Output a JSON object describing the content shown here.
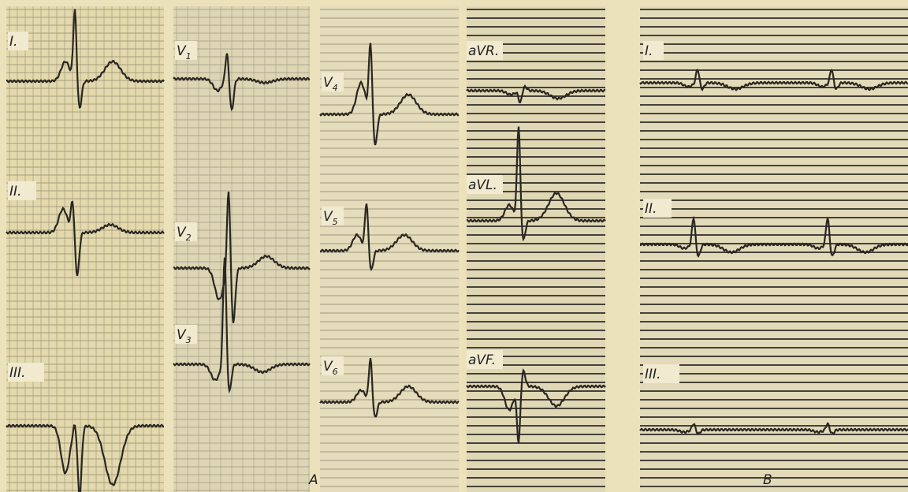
{
  "panels": [
    {
      "leads": [
        {
          "text": "I."
        },
        {
          "text": "II."
        },
        {
          "text": "III."
        }
      ]
    },
    {
      "leads": [
        {
          "text": "V",
          "sub": "1"
        },
        {
          "text": "V",
          "sub": "2"
        },
        {
          "text": "V",
          "sub": "3"
        }
      ]
    },
    {
      "leads": [
        {
          "text": "V",
          "sub": "4"
        },
        {
          "text": "V",
          "sub": "5"
        },
        {
          "text": "V",
          "sub": "6"
        }
      ]
    },
    {
      "leads": [
        {
          "text": "aVR."
        },
        {
          "text": "aVL."
        },
        {
          "text": "aVF."
        }
      ]
    },
    {
      "leads": [
        {
          "text": "I."
        },
        {
          "text": "II."
        },
        {
          "text": "III."
        }
      ]
    }
  ],
  "markers": [
    "A",
    "B"
  ]
}
